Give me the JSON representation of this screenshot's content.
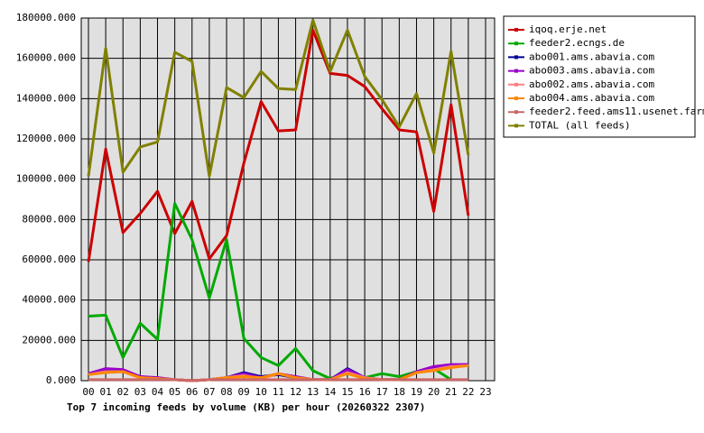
{
  "chart_data": {
    "type": "line",
    "title": "Top 7 incoming feeds by volume (KB) per hour (20260322 2307)",
    "categories": [
      "00",
      "01",
      "02",
      "03",
      "04",
      "05",
      "06",
      "07",
      "08",
      "09",
      "10",
      "11",
      "12",
      "13",
      "14",
      "15",
      "16",
      "17",
      "18",
      "19",
      "20",
      "21",
      "22",
      "23"
    ],
    "ylim": [
      0,
      180000
    ],
    "yticks": [
      {
        "value": 0,
        "label": "0.000"
      },
      {
        "value": 20000,
        "label": "20000.000"
      },
      {
        "value": 40000,
        "label": "40000.000"
      },
      {
        "value": 60000,
        "label": "60000.000"
      },
      {
        "value": 80000,
        "label": "80000.000"
      },
      {
        "value": 100000,
        "label": "100000.000"
      },
      {
        "value": 120000,
        "label": "120000.000"
      },
      {
        "value": 140000,
        "label": "140000.000"
      },
      {
        "value": 160000,
        "label": "160000.000"
      },
      {
        "value": 180000,
        "label": "180000.000"
      }
    ],
    "grid": true,
    "legend": "right",
    "series": [
      {
        "name": "iqoq.erje.net",
        "color": "#cc0000",
        "values": [
          59000,
          115000,
          73500,
          83000,
          94000,
          73000,
          89000,
          60500,
          72000,
          108000,
          138500,
          124000,
          124500,
          174000,
          152500,
          151500,
          146000,
          135000,
          124500,
          123500,
          84000,
          137000,
          82000,
          null
        ]
      },
      {
        "name": "feeder2.ecngs.de",
        "color": "#00aa00",
        "values": [
          32000,
          32500,
          11500,
          28500,
          20500,
          88000,
          70000,
          41000,
          70000,
          21000,
          11500,
          7500,
          16000,
          5000,
          1000,
          4500,
          1500,
          3500,
          2000,
          4500,
          6000,
          500,
          null,
          null
        ]
      },
      {
        "name": "abo001.ams.abavia.com",
        "color": "#000099",
        "values": [
          3000,
          5000,
          5000,
          2000,
          1000,
          500,
          0,
          500,
          1500,
          4000,
          2000,
          3000,
          1500,
          500,
          500,
          6000,
          1500,
          500,
          500,
          4000,
          6500,
          7500,
          8000,
          null
        ]
      },
      {
        "name": "abo003.ams.abavia.com",
        "color": "#9900cc",
        "values": [
          3500,
          6000,
          5500,
          2000,
          1500,
          500,
          0,
          500,
          1500,
          3500,
          1500,
          3500,
          2000,
          500,
          500,
          5500,
          1500,
          500,
          500,
          4500,
          7000,
          8000,
          8000,
          null
        ]
      },
      {
        "name": "abo002.ams.abavia.com",
        "color": "#ff8080",
        "values": [
          3000,
          4500,
          4500,
          1500,
          1000,
          500,
          0,
          500,
          1500,
          2500,
          1000,
          3500,
          1500,
          500,
          500,
          4000,
          1500,
          500,
          500,
          4000,
          5500,
          7000,
          7500,
          null
        ]
      },
      {
        "name": "abo004.ams.abavia.com",
        "color": "#ff8800",
        "values": [
          3000,
          4000,
          4500,
          1500,
          1000,
          500,
          0,
          500,
          1500,
          2000,
          1500,
          3500,
          1500,
          500,
          500,
          3500,
          1000,
          500,
          500,
          4000,
          5000,
          6500,
          7500,
          null
        ]
      },
      {
        "name": "feeder2.feed.ams11.usenet.farm",
        "color": "#cc6666",
        "values": [
          500,
          500,
          500,
          500,
          500,
          500,
          0,
          500,
          500,
          500,
          500,
          500,
          500,
          500,
          500,
          500,
          500,
          500,
          500,
          500,
          500,
          500,
          500,
          null
        ]
      },
      {
        "name": "TOTAL (all feeds)",
        "color": "#808000",
        "values": [
          101500,
          165000,
          103500,
          116000,
          118500,
          163000,
          158500,
          101500,
          145500,
          140500,
          153500,
          145000,
          144500,
          179000,
          153500,
          174000,
          151000,
          139500,
          126000,
          142500,
          113000,
          163500,
          112000,
          null
        ]
      }
    ]
  }
}
